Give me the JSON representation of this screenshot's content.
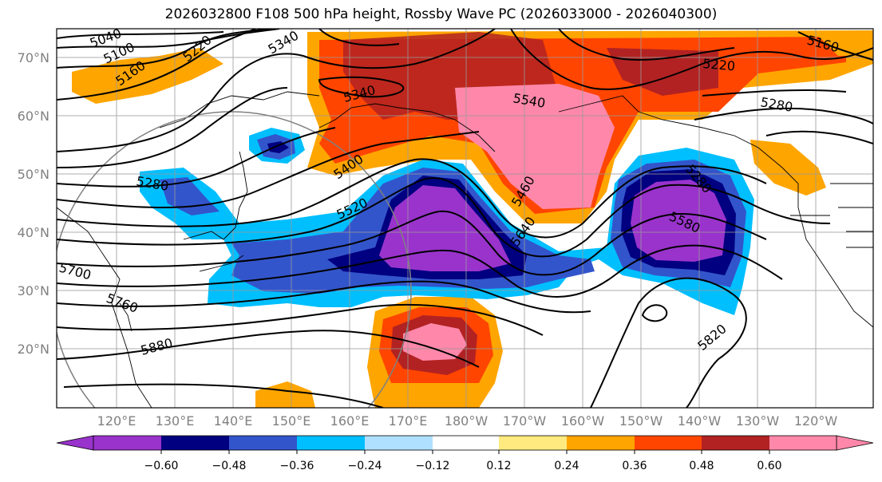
{
  "title": "2026032800 F108 500 hPa height, Rossby Wave PC (2026033000 - 2026040300)",
  "lat_labels": [
    "70°N",
    "60°N",
    "50°N",
    "40°N",
    "30°N",
    "20°N"
  ],
  "lon_labels": [
    "120°E",
    "130°E",
    "140°E",
    "150°E",
    "160°E",
    "170°E",
    "180°W",
    "170°W",
    "160°W",
    "150°W",
    "140°W",
    "130°W",
    "120°W"
  ],
  "contour_labels": [
    "5040",
    "5100",
    "5160",
    "5220",
    "5340",
    "5340",
    "5160",
    "5220",
    "5280",
    "5280",
    "5400",
    "5520",
    "5460",
    "5280",
    "5580",
    "5640",
    "5700",
    "5760",
    "5880",
    "5820",
    "5540"
  ],
  "colorbar": {
    "tick_labels": [
      "−0.60",
      "−0.48",
      "−0.36",
      "−0.24",
      "−0.12",
      "0.12",
      "0.24",
      "0.36",
      "0.48",
      "0.60"
    ],
    "colors": [
      "#9933cc",
      "#000080",
      "#3355cc",
      "#00bfff",
      "#b0e0ff",
      "#ffffff",
      "#ffea80",
      "#ffa500",
      "#ff4500",
      "#b22222",
      "#ff88aa"
    ]
  },
  "colors": {
    "neg_strong": "#9933cc",
    "neg_navy": "#000080",
    "neg_blue": "#3355cc",
    "neg_cyan": "#00bfff",
    "pos_yellow": "#ffea80",
    "pos_orange": "#ffa500",
    "pos_redorange": "#ff4500",
    "pos_darkred": "#b22222",
    "pos_pink": "#ff88aa"
  }
}
